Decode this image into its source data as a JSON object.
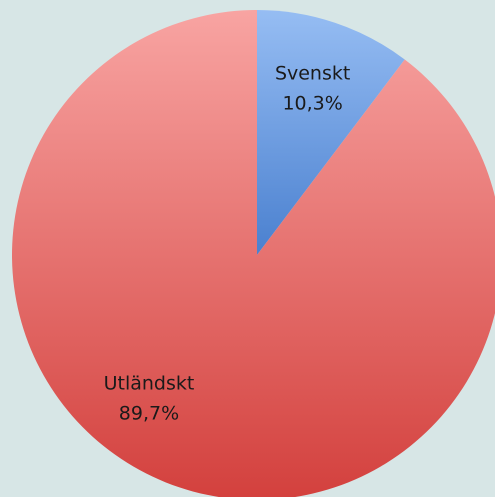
{
  "chart_data": {
    "type": "pie",
    "categories": [
      "Svenskt",
      "Utländskt"
    ],
    "values": [
      10.3,
      89.7
    ],
    "value_labels": [
      "10,3%",
      "89,7%"
    ],
    "colors": [
      "#5b8fd8",
      "#e06060"
    ]
  }
}
